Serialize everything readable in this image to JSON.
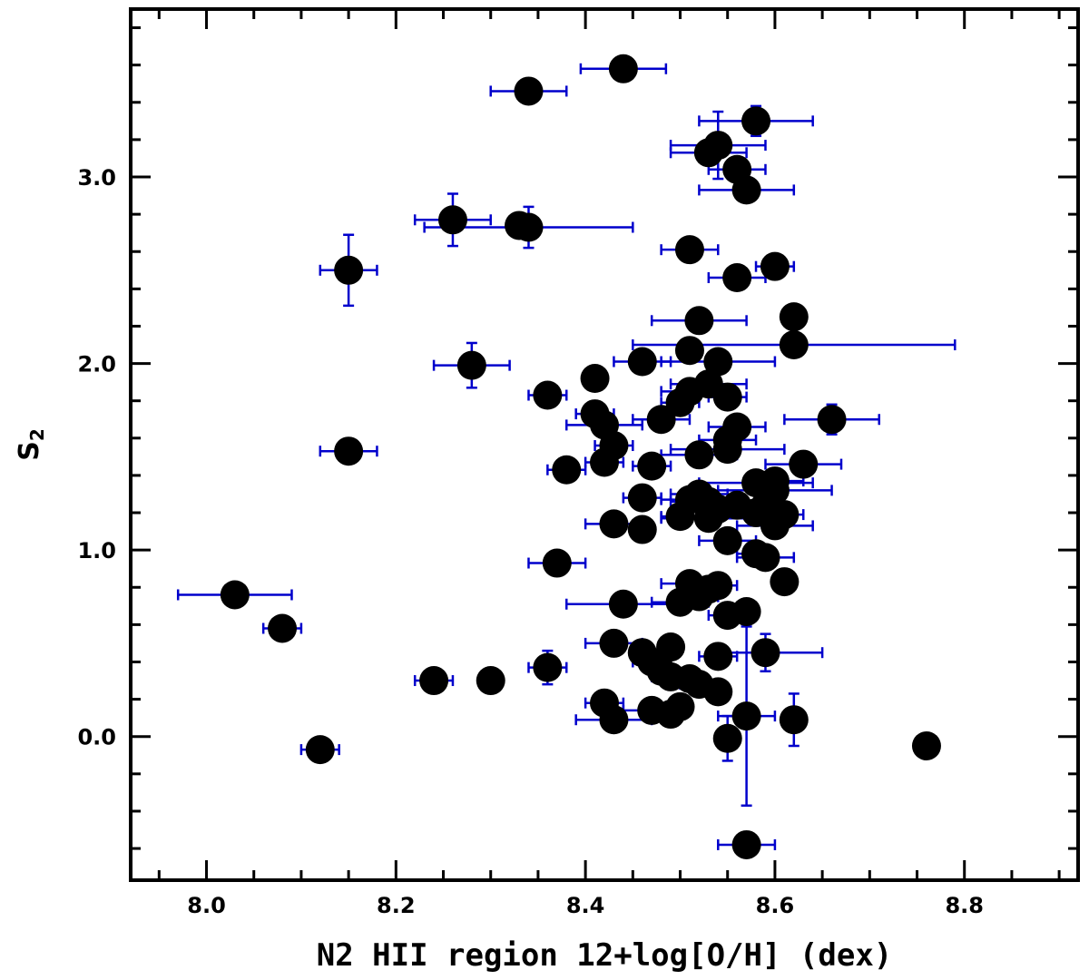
{
  "chart_data": {
    "type": "scatter",
    "title": "",
    "xlabel": "N2 HII region 12+log[O/H] (dex)",
    "ylabel_main": "S",
    "ylabel_sub": "2",
    "xlim": [
      7.92,
      8.92
    ],
    "ylim": [
      -0.77,
      3.9
    ],
    "x_major_ticks": [
      8.0,
      8.2,
      8.4,
      8.6,
      8.8
    ],
    "x_tick_labels": [
      "8.0",
      "8.2",
      "8.4",
      "8.6",
      "8.8"
    ],
    "x_minor_step": 0.05,
    "y_major_ticks": [
      0.0,
      1.0,
      2.0,
      3.0
    ],
    "y_tick_labels": [
      "0.0",
      "1.0",
      "2.0",
      "3.0"
    ],
    "y_minor_step": 0.2,
    "grid": false,
    "colors": {
      "marker": "#000000",
      "errorbar": "#0000cc",
      "axes": "#000000"
    },
    "points": [
      {
        "x": 8.44,
        "y": 3.58,
        "xe": 0.045
      },
      {
        "x": 8.34,
        "y": 3.46,
        "xe": 0.04
      },
      {
        "x": 8.58,
        "y": 3.3,
        "xe": 0.06,
        "ye": 0.08
      },
      {
        "x": 8.54,
        "y": 3.17,
        "xe": 0.05,
        "ye": 0.18
      },
      {
        "x": 8.53,
        "y": 3.13,
        "xe": 0.04
      },
      {
        "x": 8.56,
        "y": 3.04,
        "xe": 0.03
      },
      {
        "x": 8.57,
        "y": 2.93,
        "xe": 0.05
      },
      {
        "x": 8.26,
        "y": 2.77,
        "xe": 0.04,
        "ye": 0.14
      },
      {
        "x": 8.33,
        "y": 2.74
      },
      {
        "x": 8.34,
        "y": 2.73,
        "xe": 0.11,
        "ye": 0.11
      },
      {
        "x": 8.51,
        "y": 2.61,
        "xe": 0.03
      },
      {
        "x": 8.6,
        "y": 2.52,
        "xe": 0.02
      },
      {
        "x": 8.15,
        "y": 2.5,
        "xe": 0.03,
        "ye": 0.19
      },
      {
        "x": 8.56,
        "y": 2.46,
        "xe": 0.03,
        "ye": 0.05
      },
      {
        "x": 8.62,
        "y": 2.25
      },
      {
        "x": 8.52,
        "y": 2.23,
        "xe": 0.05
      },
      {
        "x": 8.62,
        "y": 2.1,
        "xe": 0.17
      },
      {
        "x": 8.51,
        "y": 2.07
      },
      {
        "x": 8.46,
        "y": 2.01,
        "xe": 0.03
      },
      {
        "x": 8.54,
        "y": 2.01,
        "xe": 0.06
      },
      {
        "x": 8.28,
        "y": 1.99,
        "xe": 0.04,
        "ye": 0.12
      },
      {
        "x": 8.41,
        "y": 1.92
      },
      {
        "x": 8.53,
        "y": 1.89,
        "xe": 0.04
      },
      {
        "x": 8.51,
        "y": 1.85,
        "xe": 0.03
      },
      {
        "x": 8.36,
        "y": 1.83,
        "xe": 0.02
      },
      {
        "x": 8.55,
        "y": 1.82,
        "xe": 0.02
      },
      {
        "x": 8.5,
        "y": 1.79,
        "xe": 0.02
      },
      {
        "x": 8.41,
        "y": 1.73,
        "xe": 0.02,
        "ye": 0.06
      },
      {
        "x": 8.48,
        "y": 1.7,
        "xe": 0.03
      },
      {
        "x": 8.66,
        "y": 1.7,
        "xe": 0.05,
        "ye": 0.08
      },
      {
        "x": 8.42,
        "y": 1.67,
        "xe": 0.04
      },
      {
        "x": 8.56,
        "y": 1.66,
        "xe": 0.03
      },
      {
        "x": 8.55,
        "y": 1.59,
        "xe": 0.03
      },
      {
        "x": 8.43,
        "y": 1.56,
        "xe": 0.02
      },
      {
        "x": 8.55,
        "y": 1.54,
        "xe": 0.06
      },
      {
        "x": 8.15,
        "y": 1.53,
        "xe": 0.03
      },
      {
        "x": 8.52,
        "y": 1.51,
        "xe": 0.04
      },
      {
        "x": 8.42,
        "y": 1.47,
        "xe": 0.02
      },
      {
        "x": 8.63,
        "y": 1.46,
        "xe": 0.04
      },
      {
        "x": 8.47,
        "y": 1.45,
        "xe": 0.02
      },
      {
        "x": 8.38,
        "y": 1.43,
        "xe": 0.02
      },
      {
        "x": 8.58,
        "y": 1.36,
        "xe": 0.06
      },
      {
        "x": 8.6,
        "y": 1.37,
        "xe": 0.03
      },
      {
        "x": 8.6,
        "y": 1.32,
        "xe": 0.06
      },
      {
        "x": 8.52,
        "y": 1.3,
        "xe": 0.03
      },
      {
        "x": 8.46,
        "y": 1.28,
        "xe": 0.02
      },
      {
        "x": 8.51,
        "y": 1.27,
        "xe": 0.03
      },
      {
        "x": 8.53,
        "y": 1.26,
        "xe": 0.04
      },
      {
        "x": 8.56,
        "y": 1.24,
        "xe": 0.03
      },
      {
        "x": 8.59,
        "y": 1.24
      },
      {
        "x": 8.54,
        "y": 1.22
      },
      {
        "x": 8.58,
        "y": 1.2,
        "xe": 0.04
      },
      {
        "x": 8.61,
        "y": 1.19,
        "xe": 0.02
      },
      {
        "x": 8.5,
        "y": 1.18,
        "xe": 0.02
      },
      {
        "x": 8.53,
        "y": 1.17,
        "xe": 0.05
      },
      {
        "x": 8.43,
        "y": 1.14,
        "xe": 0.03
      },
      {
        "x": 8.6,
        "y": 1.13,
        "xe": 0.04
      },
      {
        "x": 8.46,
        "y": 1.11
      },
      {
        "x": 8.55,
        "y": 1.05,
        "xe": 0.03
      },
      {
        "x": 8.58,
        "y": 0.98,
        "xe": 0.02
      },
      {
        "x": 8.59,
        "y": 0.96,
        "xe": 0.03
      },
      {
        "x": 8.37,
        "y": 0.93,
        "xe": 0.03
      },
      {
        "x": 8.61,
        "y": 0.83
      },
      {
        "x": 8.51,
        "y": 0.82,
        "xe": 0.03
      },
      {
        "x": 8.54,
        "y": 0.81,
        "xe": 0.02
      },
      {
        "x": 8.53,
        "y": 0.79,
        "xe": 0.02
      },
      {
        "x": 8.03,
        "y": 0.76,
        "xe": 0.06
      },
      {
        "x": 8.52,
        "y": 0.75,
        "xe": 0.02
      },
      {
        "x": 8.5,
        "y": 0.72,
        "xe": 0.03
      },
      {
        "x": 8.44,
        "y": 0.71,
        "xe": 0.06
      },
      {
        "x": 8.57,
        "y": 0.67
      },
      {
        "x": 8.55,
        "y": 0.65,
        "xe": 0.02
      },
      {
        "x": 8.08,
        "y": 0.58,
        "xe": 0.02
      },
      {
        "x": 8.43,
        "y": 0.5,
        "xe": 0.03
      },
      {
        "x": 8.49,
        "y": 0.48
      },
      {
        "x": 8.46,
        "y": 0.45
      },
      {
        "x": 8.59,
        "y": 0.45,
        "xe": 0.06,
        "ye": 0.1
      },
      {
        "x": 8.54,
        "y": 0.43,
        "xe": 0.02
      },
      {
        "x": 8.47,
        "y": 0.4,
        "xe": 0.02
      },
      {
        "x": 8.36,
        "y": 0.37,
        "xe": 0.02,
        "ye": 0.09
      },
      {
        "x": 8.48,
        "y": 0.35
      },
      {
        "x": 8.49,
        "y": 0.32,
        "xe": 0.02
      },
      {
        "x": 8.51,
        "y": 0.31
      },
      {
        "x": 8.24,
        "y": 0.3,
        "xe": 0.02
      },
      {
        "x": 8.3,
        "y": 0.3
      },
      {
        "x": 8.52,
        "y": 0.28,
        "xe": 0.02
      },
      {
        "x": 8.54,
        "y": 0.24
      },
      {
        "x": 8.42,
        "y": 0.18,
        "xe": 0.02
      },
      {
        "x": 8.5,
        "y": 0.16
      },
      {
        "x": 8.47,
        "y": 0.14,
        "xe": 0.03
      },
      {
        "x": 8.49,
        "y": 0.12
      },
      {
        "x": 8.57,
        "y": 0.11,
        "xe": 0.03,
        "ye": 0.48
      },
      {
        "x": 8.43,
        "y": 0.09,
        "xe": 0.04
      },
      {
        "x": 8.62,
        "y": 0.09,
        "ye": 0.14
      },
      {
        "x": 8.55,
        "y": -0.01,
        "ye": 0.12
      },
      {
        "x": 8.76,
        "y": -0.05
      },
      {
        "x": 8.12,
        "y": -0.07,
        "xe": 0.02
      },
      {
        "x": 8.57,
        "y": -0.58,
        "xe": 0.03
      }
    ]
  }
}
